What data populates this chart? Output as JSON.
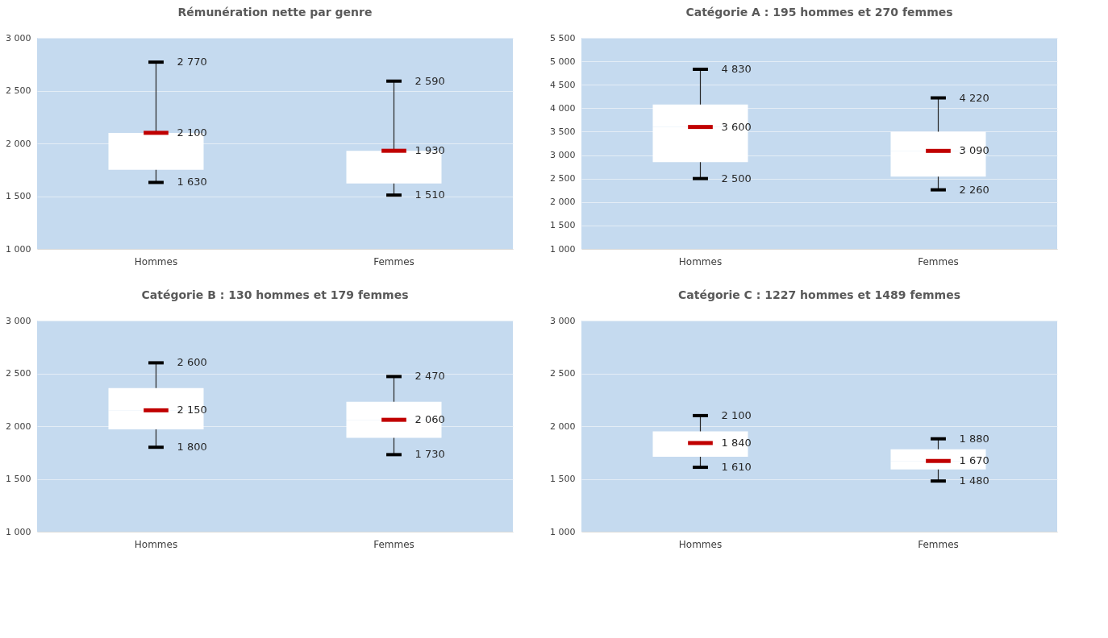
{
  "chart_data": [
    {
      "type": "box",
      "title": "Rémunération nette par genre",
      "categories": [
        "Hommes",
        "Femmes"
      ],
      "boxes": [
        {
          "low": 1630,
          "q1": 1750,
          "median": 2100,
          "q3": 2100,
          "high": 2770
        },
        {
          "low": 1510,
          "q1": 1620,
          "median": 1930,
          "q3": 1930,
          "high": 2590
        }
      ],
      "ylim": [
        1000,
        3000
      ],
      "yticks": [
        {
          "value": 1000,
          "label": "1 000"
        },
        {
          "value": 1500,
          "label": "1 500"
        },
        {
          "value": 2000,
          "label": "2 000"
        },
        {
          "value": 2500,
          "label": "2 500"
        },
        {
          "value": 3000,
          "label": "3 000"
        }
      ],
      "grid": "y",
      "annotations": [
        {
          "text": "2 770",
          "x": "Hommes",
          "y": 2770
        },
        {
          "text": "2 100",
          "x": "Hommes",
          "y": 2100
        },
        {
          "text": "1 630",
          "x": "Hommes",
          "y": 1630
        },
        {
          "text": "2 590",
          "x": "Femmes",
          "y": 2590
        },
        {
          "text": "1 930",
          "x": "Femmes",
          "y": 1930
        },
        {
          "text": "1 510",
          "x": "Femmes",
          "y": 1510
        }
      ]
    },
    {
      "type": "box",
      "title": "Catégorie A : 195 hommes et 270 femmes",
      "categories": [
        "Hommes",
        "Femmes"
      ],
      "boxes": [
        {
          "low": 2500,
          "q1": 2850,
          "median": 3600,
          "q3": 4080,
          "high": 4830
        },
        {
          "low": 2260,
          "q1": 2540,
          "median": 3090,
          "q3": 3500,
          "high": 4220
        }
      ],
      "ylim": [
        1000,
        5500
      ],
      "yticks": [
        {
          "value": 1000,
          "label": "1 000"
        },
        {
          "value": 1500,
          "label": "1 500"
        },
        {
          "value": 2000,
          "label": "2 000"
        },
        {
          "value": 2500,
          "label": "2 500"
        },
        {
          "value": 3000,
          "label": "3 000"
        },
        {
          "value": 3500,
          "label": "3 500"
        },
        {
          "value": 4000,
          "label": "4 000"
        },
        {
          "value": 4500,
          "label": "4 500"
        },
        {
          "value": 5000,
          "label": "5 000"
        },
        {
          "value": 5500,
          "label": "5 500"
        }
      ],
      "grid": "y",
      "annotations": [
        {
          "text": "4 830",
          "x": "Hommes",
          "y": 4830
        },
        {
          "text": "3 600",
          "x": "Hommes",
          "y": 3600
        },
        {
          "text": "2 500",
          "x": "Hommes",
          "y": 2500
        },
        {
          "text": "4 220",
          "x": "Femmes",
          "y": 4220
        },
        {
          "text": "3 090",
          "x": "Femmes",
          "y": 3090
        },
        {
          "text": "2 260",
          "x": "Femmes",
          "y": 2260
        }
      ]
    },
    {
      "type": "box",
      "title": "Catégorie B : 130 hommes et 179 femmes",
      "categories": [
        "Hommes",
        "Femmes"
      ],
      "boxes": [
        {
          "low": 1800,
          "q1": 1970,
          "median": 2150,
          "q3": 2360,
          "high": 2600
        },
        {
          "low": 1730,
          "q1": 1890,
          "median": 2060,
          "q3": 2230,
          "high": 2470
        }
      ],
      "ylim": [
        1000,
        3000
      ],
      "yticks": [
        {
          "value": 1000,
          "label": "1 000"
        },
        {
          "value": 1500,
          "label": "1 500"
        },
        {
          "value": 2000,
          "label": "2 000"
        },
        {
          "value": 2500,
          "label": "2 500"
        },
        {
          "value": 3000,
          "label": "3 000"
        }
      ],
      "grid": "y",
      "annotations": [
        {
          "text": "2 600",
          "x": "Hommes",
          "y": 2600
        },
        {
          "text": "2 150",
          "x": "Hommes",
          "y": 2150
        },
        {
          "text": "1 800",
          "x": "Hommes",
          "y": 1800
        },
        {
          "text": "2 470",
          "x": "Femmes",
          "y": 2470
        },
        {
          "text": "2 060",
          "x": "Femmes",
          "y": 2060
        },
        {
          "text": "1 730",
          "x": "Femmes",
          "y": 1730
        }
      ]
    },
    {
      "type": "box",
      "title": "Catégorie C : 1227 hommes et 1489 femmes",
      "categories": [
        "Hommes",
        "Femmes"
      ],
      "boxes": [
        {
          "low": 1610,
          "q1": 1710,
          "median": 1840,
          "q3": 1950,
          "high": 2100
        },
        {
          "low": 1480,
          "q1": 1590,
          "median": 1670,
          "q3": 1780,
          "high": 1880
        }
      ],
      "ylim": [
        1000,
        3000
      ],
      "yticks": [
        {
          "value": 1000,
          "label": "1 000"
        },
        {
          "value": 1500,
          "label": "1 500"
        },
        {
          "value": 2000,
          "label": "2 000"
        },
        {
          "value": 2500,
          "label": "2 500"
        },
        {
          "value": 3000,
          "label": "3 000"
        }
      ],
      "grid": "y",
      "annotations": [
        {
          "text": "2 100",
          "x": "Hommes",
          "y": 2100
        },
        {
          "text": "1 840",
          "x": "Hommes",
          "y": 1840
        },
        {
          "text": "1 610",
          "x": "Hommes",
          "y": 1610
        },
        {
          "text": "1 880",
          "x": "Femmes",
          "y": 1880
        },
        {
          "text": "1 670",
          "x": "Femmes",
          "y": 1670
        },
        {
          "text": "1 480",
          "x": "Femmes",
          "y": 1480
        }
      ]
    }
  ]
}
